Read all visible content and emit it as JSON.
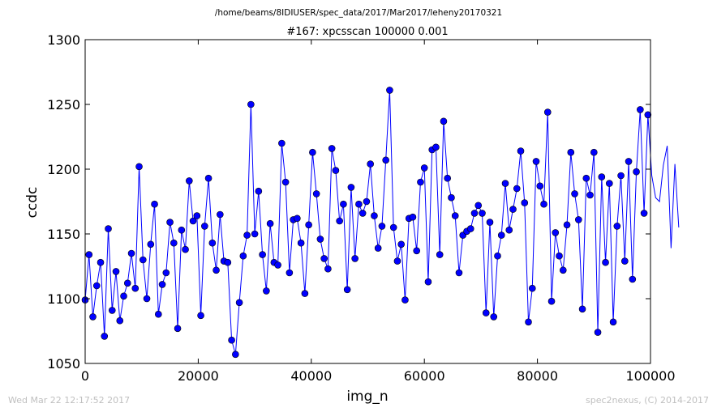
{
  "footer": {
    "left": "Wed Mar 22 12:17:52 2017",
    "right": "spec2nexus, (C) 2014-2017"
  },
  "chart_data": {
    "type": "line",
    "suptitle": "/home/beams/8IDIUSER/spec_data/2017/Mar2017/leheny20170321",
    "title": "#167: xpcsscan 100000 0.001",
    "xlabel": "img_n",
    "ylabel": "ccdc",
    "xlim": [
      0,
      100000
    ],
    "ylim": [
      1050,
      1300
    ],
    "xticks": [
      0,
      20000,
      40000,
      60000,
      80000,
      100000
    ],
    "yticks": [
      1050,
      1100,
      1150,
      1200,
      1250,
      1300
    ],
    "line_color": "#0000ff",
    "marker": "circle",
    "x_start": 0,
    "x_step": 681.82,
    "y": [
      1099,
      1134,
      1086,
      1110,
      1128,
      1071,
      1154,
      1091,
      1121,
      1083,
      1102,
      1112,
      1135,
      1108,
      1202,
      1130,
      1100,
      1142,
      1173,
      1088,
      1111,
      1120,
      1159,
      1143,
      1077,
      1153,
      1138,
      1191,
      1160,
      1164,
      1087,
      1156,
      1193,
      1143,
      1122,
      1165,
      1129,
      1128,
      1068,
      1057,
      1097,
      1133,
      1149,
      1250,
      1150,
      1183,
      1134,
      1106,
      1158,
      1128,
      1126,
      1220,
      1190,
      1120,
      1161,
      1162,
      1143,
      1104,
      1157,
      1213,
      1181,
      1146,
      1131,
      1123,
      1216,
      1199,
      1160,
      1173,
      1107,
      1186,
      1131,
      1173,
      1166,
      1175,
      1204,
      1164,
      1139,
      1156,
      1207,
      1261,
      1155,
      1129,
      1142,
      1099,
      1162,
      1163,
      1137,
      1190,
      1201,
      1113,
      1215,
      1217,
      1134,
      1237,
      1193,
      1178,
      1164,
      1120,
      1149,
      1152,
      1154,
      1166,
      1172,
      1166,
      1089,
      1159,
      1086,
      1133,
      1149,
      1189,
      1153,
      1169,
      1185,
      1214,
      1174,
      1082,
      1108,
      1206,
      1187,
      1173,
      1244,
      1098,
      1151,
      1133,
      1122,
      1157,
      1213,
      1181,
      1161,
      1092,
      1193,
      1180,
      1213,
      1074,
      1194,
      1128,
      1189,
      1082,
      1156,
      1195,
      1129,
      1206,
      1115,
      1198,
      1246,
      1166,
      1242,
      1195,
      1178,
      1175,
      1203,
      1218,
      1139,
      1204,
      1155
    ]
  }
}
